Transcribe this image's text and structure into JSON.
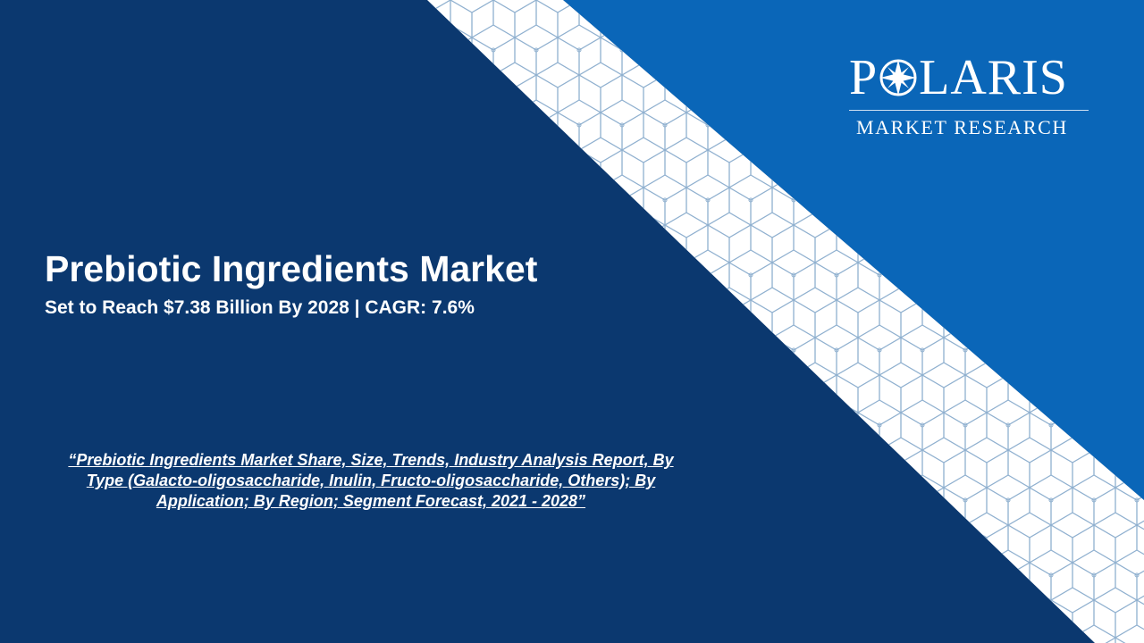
{
  "slide": {
    "title": "Prebiotic Ingredients Market",
    "subtitle": "Set to Reach $7.38 Billion By 2028 | CAGR: 7.6%",
    "report_link": "“Prebiotic Ingredients Market Share, Size, Trends, Industry Analysis Report, By Type (Galacto-oligosaccharide, Inulin, Fructo-oligosaccharide, Others); By Application; By Region; Segment Forecast, 2021 - 2028”"
  },
  "logo": {
    "name_start": "P",
    "name_end": "LARIS",
    "tagline": "MARKET RESEARCH"
  }
}
